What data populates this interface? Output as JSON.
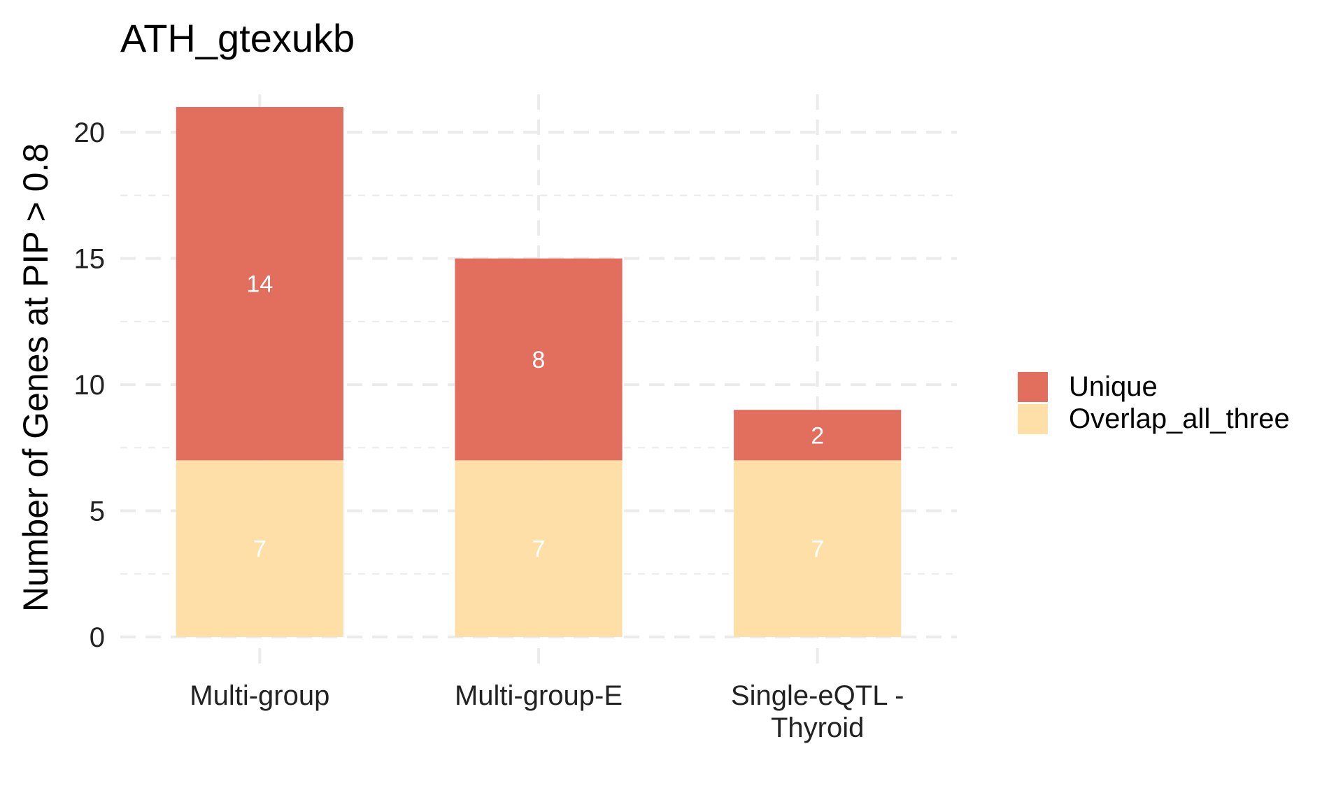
{
  "chart_data": {
    "type": "bar",
    "stacked": true,
    "title": "ATH_gtexukb",
    "xlabel": "",
    "ylabel": "Number of Genes at PIP > 0.8",
    "ylim": [
      0,
      21.5
    ],
    "yticks": [
      0,
      5,
      10,
      15,
      20
    ],
    "grid": true,
    "legend_position": "right",
    "categories": [
      "Multi-group",
      "Multi-group-E",
      "Single-eQTL -\nThyroid"
    ],
    "series": [
      {
        "name": "Overlap_all_three",
        "values": [
          7,
          7,
          7
        ],
        "color": "#FEDFA7"
      },
      {
        "name": "Unique",
        "values": [
          14,
          8,
          2
        ],
        "color": "#E26E5E"
      }
    ],
    "legend_order": [
      "Unique",
      "Overlap_all_three"
    ],
    "data_label_color": "#ffffff",
    "grid_color": "#EBEBEB",
    "text_color": "#000000"
  }
}
